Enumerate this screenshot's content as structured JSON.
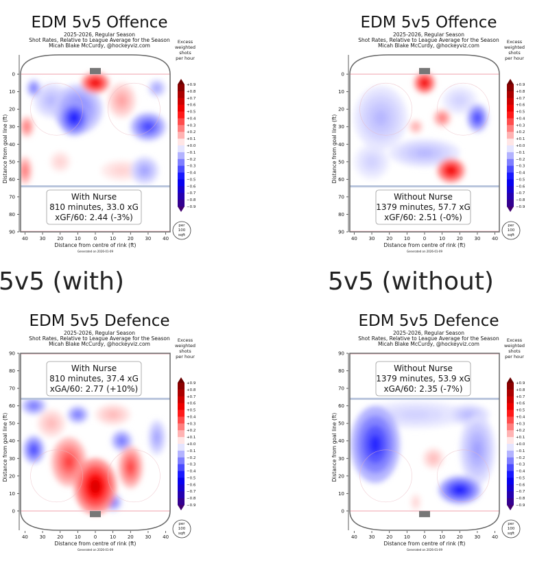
{
  "section_labels": [
    "5v5 (with)",
    "5v5 (without)"
  ],
  "panels": [
    {
      "title": "EDM 5v5 Offence",
      "season": "2025-2026, Regular Season",
      "desc": "Shot Rates, Relative to League Average for the Season",
      "author": "Micah Blake McCurdy, @hockeyviz.com",
      "box": [
        "With Nurse",
        "810 minutes, 33.0 xG",
        "xGF/60: 2.44 (-3%)"
      ],
      "generated": "Generated on 2026-01-09"
    },
    {
      "title": "EDM 5v5 Offence",
      "season": "2025-2026, Regular Season",
      "desc": "Shot Rates, Relative to League Average for the Season",
      "author": "Micah Blake McCurdy, @hockeyviz.com",
      "box": [
        "Without Nurse",
        "1379 minutes, 57.7 xG",
        "xGF/60: 2.51 (-0%)"
      ],
      "generated": "Generated on 2026-01-09"
    },
    {
      "title": "EDM 5v5 Defence",
      "season": "2025-2026, Regular Season",
      "desc": "Shot Rates, Relative to League Average for the Season",
      "author": "Micah Blake McCurdy, @hockeyviz.com",
      "box": [
        "With Nurse",
        "810 minutes, 37.4 xG",
        "xGA/60: 2.77 (+10%)"
      ],
      "generated": "Generated on 2026-01-09"
    },
    {
      "title": "EDM 5v5 Defence",
      "season": "2025-2026, Regular Season",
      "desc": "Shot Rates, Relative to League Average for the Season",
      "author": "Micah Blake McCurdy, @hockeyviz.com",
      "box": [
        "Without Nurse",
        "1379 minutes, 53.9 xG",
        "xGA/60: 2.35 (-7%)"
      ],
      "generated": "Generated on 2026-01-09"
    }
  ],
  "chart_data": {
    "type": "heatmap",
    "xlabel": "Distance from centre of rink (ft)",
    "ylabel": "Distance from goal line (ft)",
    "xticks": [
      "40",
      "30",
      "20",
      "10",
      "0",
      "10",
      "20",
      "30",
      "40"
    ],
    "yticks": [
      "0",
      "10",
      "20",
      "30",
      "40",
      "50",
      "60",
      "70",
      "80",
      "90"
    ],
    "xlim": [
      -42.5,
      42.5
    ],
    "ylim": [
      0,
      90
    ],
    "colorbar": {
      "label": [
        "Excess",
        "weighted",
        "shots",
        "per hour"
      ],
      "ticks": [
        "+0.9",
        "+0.8",
        "+0.7",
        "+0.6",
        "+0.5",
        "+0.4",
        "+0.3",
        "+0.2",
        "+0.1",
        "+0.0",
        "−0.1",
        "−0.2",
        "−0.3",
        "−0.4",
        "−0.5",
        "−0.6",
        "−0.7",
        "−0.8",
        "−0.9"
      ],
      "range": [
        -0.9,
        0.9
      ]
    },
    "unit_badge": [
      "per",
      "100",
      "sqft"
    ],
    "colors": {
      "positive": "#ff0000",
      "negative": "#0000ff",
      "max": "#7a0000",
      "min": "#3b0080"
    },
    "hotspots": [
      [
        [
          0,
          5,
          8,
          6,
          0.6
        ],
        [
          -12,
          25,
          9,
          10,
          -0.5
        ],
        [
          -10,
          20,
          14,
          14,
          -0.3
        ],
        [
          -35,
          8,
          4,
          5,
          -0.3
        ],
        [
          -39,
          30,
          4,
          6,
          0.3
        ],
        [
          -40,
          55,
          4,
          8,
          0.3
        ],
        [
          15,
          15,
          8,
          10,
          0.2
        ],
        [
          30,
          30,
          10,
          8,
          -0.4
        ],
        [
          35,
          8,
          5,
          5,
          -0.2
        ],
        [
          -20,
          50,
          6,
          6,
          0.1
        ],
        [
          15,
          55,
          12,
          6,
          0.1
        ],
        [
          28,
          55,
          8,
          8,
          -0.2
        ],
        [
          -25,
          15,
          10,
          10,
          -0.15
        ]
      ],
      [
        [
          0,
          5,
          6,
          6,
          0.6
        ],
        [
          10,
          25,
          5,
          5,
          0.3
        ],
        [
          15,
          55,
          8,
          7,
          0.6
        ],
        [
          30,
          25,
          6,
          8,
          -0.4
        ],
        [
          -25,
          25,
          15,
          18,
          -0.15
        ],
        [
          -30,
          50,
          10,
          10,
          -0.1
        ],
        [
          0,
          45,
          20,
          8,
          -0.15
        ],
        [
          20,
          15,
          10,
          8,
          -0.1
        ],
        [
          -5,
          30,
          4,
          4,
          0.2
        ]
      ],
      [
        [
          0,
          14,
          12,
          16,
          0.65
        ],
        [
          -15,
          28,
          10,
          14,
          0.4
        ],
        [
          20,
          25,
          7,
          12,
          0.4
        ],
        [
          -35,
          35,
          6,
          8,
          -0.4
        ],
        [
          -35,
          60,
          7,
          5,
          -0.3
        ],
        [
          -10,
          55,
          6,
          5,
          -0.3
        ],
        [
          15,
          40,
          6,
          6,
          -0.3
        ],
        [
          35,
          42,
          5,
          10,
          -0.2
        ],
        [
          -25,
          50,
          8,
          8,
          0.15
        ],
        [
          10,
          55,
          10,
          6,
          0.15
        ],
        [
          10,
          5,
          5,
          5,
          -0.3
        ]
      ],
      [
        [
          -28,
          38,
          14,
          22,
          -0.45
        ],
        [
          20,
          12,
          12,
          8,
          -0.5
        ],
        [
          30,
          35,
          10,
          20,
          -0.2
        ],
        [
          5,
          30,
          6,
          6,
          0.15
        ],
        [
          -5,
          55,
          30,
          8,
          -0.1
        ],
        [
          25,
          55,
          12,
          6,
          -0.15
        ],
        [
          -5,
          5,
          3,
          5,
          0.1
        ]
      ]
    ]
  }
}
